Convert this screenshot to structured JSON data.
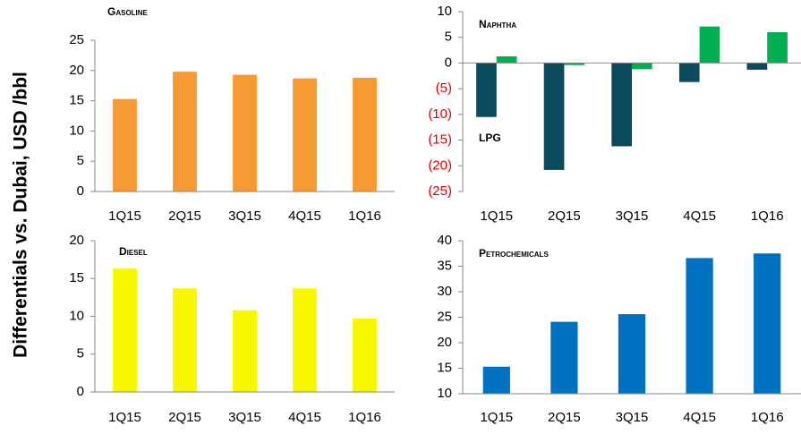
{
  "ylabel": "Differentials vs. Dubai, USD /bbl",
  "chart_data": [
    {
      "type": "bar",
      "title": "Gasoline",
      "categories": [
        "1Q15",
        "2Q15",
        "3Q15",
        "4Q15",
        "1Q16"
      ],
      "series": [
        {
          "name": "Gasoline",
          "color": "#f79a33",
          "values": [
            15.3,
            19.8,
            19.3,
            18.7,
            18.8
          ]
        }
      ],
      "ylim": [
        0,
        25
      ],
      "yticks": [
        0,
        5,
        10,
        15,
        20,
        25
      ]
    },
    {
      "type": "bar",
      "categories": [
        "1Q15",
        "2Q15",
        "3Q15",
        "4Q15",
        "1Q16"
      ],
      "series": [
        {
          "name": "LPG",
          "color": "#0b4a5c",
          "values": [
            -10.5,
            -20.8,
            -16.2,
            -3.7,
            -1.3
          ]
        },
        {
          "name": "Naphtha",
          "color": "#00b050",
          "values": [
            1.3,
            -0.4,
            -1.2,
            7.1,
            6.0
          ]
        }
      ],
      "ylim": [
        -25,
        10
      ],
      "yticks": [
        {
          "value": -25,
          "label": "(25)"
        },
        {
          "value": -20,
          "label": "(20)"
        },
        {
          "value": -15,
          "label": "(15)"
        },
        {
          "value": -10,
          "label": "(10)"
        },
        {
          "value": -5,
          "label": "(5)"
        },
        0,
        5,
        10
      ]
    },
    {
      "type": "bar",
      "title": "Diesel",
      "categories": [
        "1Q15",
        "2Q15",
        "3Q15",
        "4Q15",
        "1Q16"
      ],
      "series": [
        {
          "name": "Diesel",
          "color": "#f7f700",
          "values": [
            16.3,
            13.7,
            10.8,
            13.7,
            9.7
          ]
        }
      ],
      "ylim": [
        0,
        20
      ],
      "yticks": [
        0,
        5,
        10,
        15,
        20
      ]
    },
    {
      "type": "bar",
      "title": "Petrochemicals",
      "categories": [
        "1Q15",
        "2Q15",
        "3Q15",
        "4Q15",
        "1Q16"
      ],
      "series": [
        {
          "name": "Petrochemicals",
          "color": "#0070c0",
          "values": [
            15.3,
            24.1,
            25.6,
            36.6,
            37.5
          ]
        }
      ],
      "ylim": [
        10,
        40
      ],
      "yticks": [
        10,
        15,
        20,
        25,
        30,
        35,
        40
      ]
    }
  ]
}
